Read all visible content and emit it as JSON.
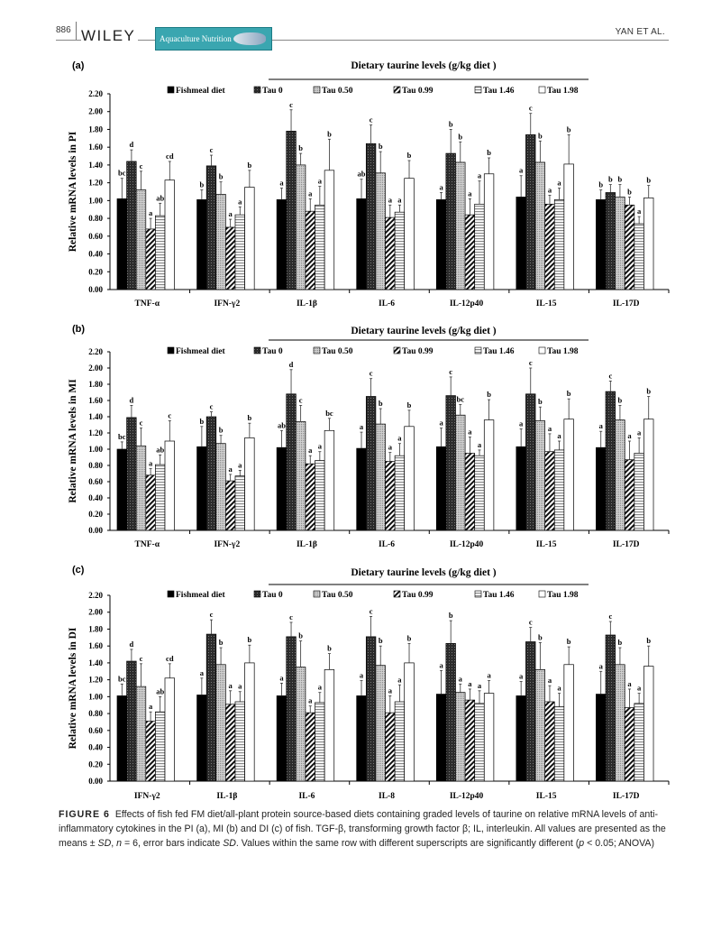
{
  "header": {
    "page_number": "886",
    "publisher": "WILEY",
    "journal": "Aquaculture Nutrition",
    "running_author": "YAN ET AL."
  },
  "legend": [
    "Fishmeal diet",
    "Tau 0",
    "Tau 0.50",
    "Tau 0.99",
    "Tau 1.46",
    "Tau 1.98"
  ],
  "legend_group_title": "Dietary taurine levels (g/kg diet )",
  "colors": {
    "fishmeal": "#000000",
    "tau0": "#2b2b2b",
    "tau050": "#b5b5b5",
    "tau099": "#ffffff",
    "tau146": "#ffffff",
    "tau198": "#ffffff"
  },
  "chart_data": [
    {
      "panel": "(a)",
      "type": "bar",
      "ylabel": "Relative  mRNA  levels in PI",
      "ylim": [
        0,
        2.2
      ],
      "yticks": [
        "0.00",
        "0.20",
        "0.40",
        "0.60",
        "0.80",
        "1.00",
        "1.20",
        "1.40",
        "1.60",
        "1.80",
        "2.00",
        "2.20"
      ],
      "groups": [
        {
          "category": "TNF-α",
          "means": [
            1.02,
            1.44,
            1.12,
            0.68,
            0.83,
            1.23
          ],
          "sd": [
            0.23,
            0.13,
            0.21,
            0.12,
            0.14,
            0.21
          ],
          "letters": [
            "bc",
            "d",
            "c",
            "a",
            "ab",
            "cd"
          ]
        },
        {
          "category": "IFN-γ2",
          "means": [
            1.01,
            1.39,
            1.07,
            0.7,
            0.84,
            1.15
          ],
          "sd": [
            0.11,
            0.12,
            0.14,
            0.09,
            0.09,
            0.19
          ],
          "letters": [
            "b",
            "c",
            "b",
            "a",
            "a",
            "b"
          ]
        },
        {
          "category": "IL-1β",
          "means": [
            1.01,
            1.78,
            1.4,
            0.88,
            0.95,
            1.34
          ],
          "sd": [
            0.13,
            0.24,
            0.13,
            0.14,
            0.21,
            0.35
          ],
          "letters": [
            "a",
            "c",
            "b",
            "a",
            "a",
            "b"
          ]
        },
        {
          "category": "IL-6",
          "means": [
            1.02,
            1.64,
            1.31,
            0.81,
            0.87,
            1.25
          ],
          "sd": [
            0.22,
            0.21,
            0.24,
            0.14,
            0.08,
            0.2
          ],
          "letters": [
            "ab",
            "c",
            "b",
            "a",
            "a",
            "b"
          ]
        },
        {
          "category": "IL-12p40",
          "means": [
            1.01,
            1.53,
            1.43,
            0.84,
            0.96,
            1.3
          ],
          "sd": [
            0.08,
            0.27,
            0.23,
            0.18,
            0.26,
            0.18
          ],
          "letters": [
            "a",
            "b",
            "b",
            "a",
            "a",
            "b"
          ]
        },
        {
          "category": "IL-15",
          "means": [
            1.04,
            1.74,
            1.43,
            0.96,
            1.01,
            1.41
          ],
          "sd": [
            0.24,
            0.24,
            0.24,
            0.1,
            0.13,
            0.33
          ],
          "letters": [
            "a",
            "c",
            "b",
            "a",
            "a",
            "b"
          ]
        },
        {
          "category": "IL-17D",
          "means": [
            1.01,
            1.09,
            1.04,
            0.95,
            0.74,
            1.03
          ],
          "sd": [
            0.11,
            0.09,
            0.14,
            0.09,
            0.08,
            0.14
          ],
          "letters": [
            "b",
            "b",
            "b",
            "b",
            "a",
            "b"
          ]
        }
      ]
    },
    {
      "panel": "(b)",
      "type": "bar",
      "ylabel": "Relative  mRNA  levels  in  MI",
      "ylim": [
        0,
        2.2
      ],
      "yticks": [
        "0.00",
        "0.20",
        "0.40",
        "0.60",
        "0.80",
        "1.00",
        "1.20",
        "1.40",
        "1.60",
        "1.80",
        "2.00",
        "2.20"
      ],
      "groups": [
        {
          "category": "TNF-α",
          "means": [
            1.0,
            1.39,
            1.04,
            0.68,
            0.81,
            1.1
          ],
          "sd": [
            0.09,
            0.15,
            0.22,
            0.08,
            0.12,
            0.25
          ],
          "letters": [
            "bc",
            "d",
            "c",
            "a",
            "ab",
            "c"
          ]
        },
        {
          "category": "IFN-γ2",
          "means": [
            1.03,
            1.4,
            1.07,
            0.61,
            0.67,
            1.14
          ],
          "sd": [
            0.25,
            0.06,
            0.1,
            0.08,
            0.07,
            0.18
          ],
          "letters": [
            "b",
            "c",
            "b",
            "a",
            "a",
            "b"
          ]
        },
        {
          "category": "IL-1β",
          "means": [
            1.02,
            1.68,
            1.34,
            0.82,
            0.86,
            1.23
          ],
          "sd": [
            0.21,
            0.3,
            0.2,
            0.1,
            0.11,
            0.15
          ],
          "letters": [
            "ab",
            "d",
            "c",
            "a",
            "a",
            "bc"
          ]
        },
        {
          "category": "IL-6",
          "means": [
            1.01,
            1.65,
            1.31,
            0.85,
            0.92,
            1.28
          ],
          "sd": [
            0.2,
            0.22,
            0.19,
            0.11,
            0.15,
            0.2
          ],
          "letters": [
            "a",
            "c",
            "b",
            "a",
            "a",
            "b"
          ]
        },
        {
          "category": "IL-12p40",
          "means": [
            1.03,
            1.66,
            1.42,
            0.95,
            0.92,
            1.36
          ],
          "sd": [
            0.23,
            0.23,
            0.13,
            0.2,
            0.07,
            0.25
          ],
          "letters": [
            "a",
            "c",
            "bc",
            "a",
            "a",
            "b"
          ]
        },
        {
          "category": "IL-15",
          "means": [
            1.03,
            1.68,
            1.35,
            0.97,
            0.99,
            1.37
          ],
          "sd": [
            0.22,
            0.32,
            0.17,
            0.22,
            0.11,
            0.25
          ],
          "letters": [
            "a",
            "c",
            "b",
            "a",
            "a",
            "b"
          ]
        },
        {
          "category": "IL-17D",
          "means": [
            1.02,
            1.71,
            1.36,
            0.87,
            0.95,
            1.37
          ],
          "sd": [
            0.2,
            0.13,
            0.18,
            0.23,
            0.19,
            0.28
          ],
          "letters": [
            "a",
            "c",
            "b",
            "a",
            "a",
            "b"
          ]
        }
      ]
    },
    {
      "panel": "(c)",
      "type": "bar",
      "ylabel": "Relative  mRNA  levels  in  DI",
      "ylim": [
        0,
        2.2
      ],
      "yticks": [
        "0.00",
        "0.20",
        "0.40",
        "0.60",
        "0.80",
        "1.00",
        "1.20",
        "1.40",
        "1.60",
        "1.80",
        "2.00",
        "2.20"
      ],
      "groups": [
        {
          "category": "IFN-γ2",
          "means": [
            1.01,
            1.42,
            1.12,
            0.71,
            0.82,
            1.22
          ],
          "sd": [
            0.14,
            0.14,
            0.27,
            0.11,
            0.18,
            0.17
          ],
          "letters": [
            "bc",
            "d",
            "c",
            "a",
            "ab",
            "cd"
          ]
        },
        {
          "category": "IL-1β",
          "means": [
            1.02,
            1.74,
            1.38,
            0.91,
            0.94,
            1.4
          ],
          "sd": [
            0.2,
            0.17,
            0.2,
            0.16,
            0.12,
            0.21
          ],
          "letters": [
            "a",
            "c",
            "b",
            "a",
            "a",
            "b"
          ]
        },
        {
          "category": "IL-6",
          "means": [
            1.01,
            1.71,
            1.35,
            0.81,
            0.93,
            1.32
          ],
          "sd": [
            0.15,
            0.17,
            0.31,
            0.08,
            0.12,
            0.19
          ],
          "letters": [
            "a",
            "c",
            "b",
            "a",
            "a",
            "b"
          ]
        },
        {
          "category": "IL-8",
          "means": [
            1.01,
            1.71,
            1.37,
            0.81,
            0.94,
            1.4
          ],
          "sd": [
            0.18,
            0.24,
            0.23,
            0.2,
            0.2,
            0.23
          ],
          "letters": [
            "a",
            "c",
            "b",
            "a",
            "a",
            "b"
          ]
        },
        {
          "category": "IL-12p40",
          "means": [
            1.03,
            1.63,
            1.05,
            0.96,
            0.92,
            1.04
          ],
          "sd": [
            0.28,
            0.27,
            0.1,
            0.13,
            0.15,
            0.15
          ],
          "letters": [
            "a",
            "b",
            "a",
            "a",
            "a",
            "a"
          ]
        },
        {
          "category": "IL-15",
          "means": [
            1.01,
            1.65,
            1.32,
            0.94,
            0.88,
            1.38
          ],
          "sd": [
            0.17,
            0.17,
            0.32,
            0.19,
            0.16,
            0.21
          ],
          "letters": [
            "a",
            "c",
            "b",
            "a",
            "a",
            "b"
          ]
        },
        {
          "category": "IL-17D",
          "means": [
            1.03,
            1.73,
            1.38,
            0.87,
            0.92,
            1.36
          ],
          "sd": [
            0.27,
            0.16,
            0.2,
            0.22,
            0.12,
            0.24
          ],
          "letters": [
            "a",
            "c",
            "b",
            "a",
            "a",
            "b"
          ]
        }
      ]
    }
  ],
  "caption": {
    "label": "FIGURE 6",
    "text1": "Effects of fish fed FM diet/all-plant protein source-based diets containing graded levels of taurine on relative mRNA levels of anti-inflammatory cytokines in the PI (a), MI (b) and DI (c) of fish. TGF-β, transforming growth factor β; IL, interleukin. All values are presented as the means ± ",
    "sd1": "SD",
    "text2": ", ",
    "n": "n",
    "text3": " = 6, error bars indicate ",
    "sd2": "SD",
    "text4": ". Values within the same row with different superscripts are significantly different (",
    "p": "p",
    "text5": " < 0.05; ANOVA)"
  }
}
